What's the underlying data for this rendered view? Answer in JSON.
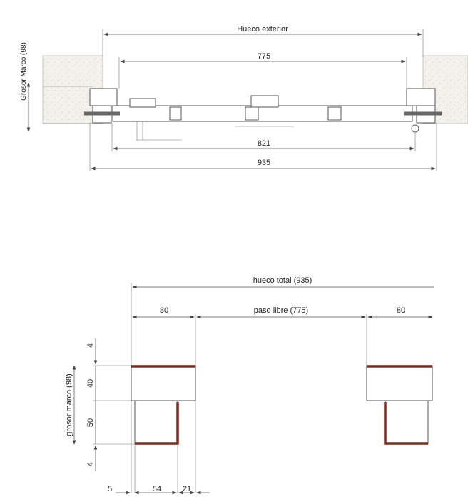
{
  "top_drawing": {
    "labels": {
      "hueco_exterior": "Hueco exterior",
      "dim_775": "775",
      "dim_821": "821",
      "dim_935": "935",
      "grosor_marco": "Grosor Marco (98)"
    }
  },
  "bottom_drawing": {
    "labels": {
      "hueco_total": "hueco total (935)",
      "paso_libre": "paso libre (775)",
      "left_80": "80",
      "right_80": "80",
      "grosor_marco": "grosor marco (98)",
      "v_4_top": "4",
      "v_40": "40",
      "v_50": "50",
      "v_4_bottom": "4",
      "h_5": "5",
      "h_54": "54",
      "h_21": "21"
    }
  },
  "colors": {
    "frame_edge": "#7a2a1e",
    "lines": "#555555",
    "concrete": "#f3f1ec"
  }
}
